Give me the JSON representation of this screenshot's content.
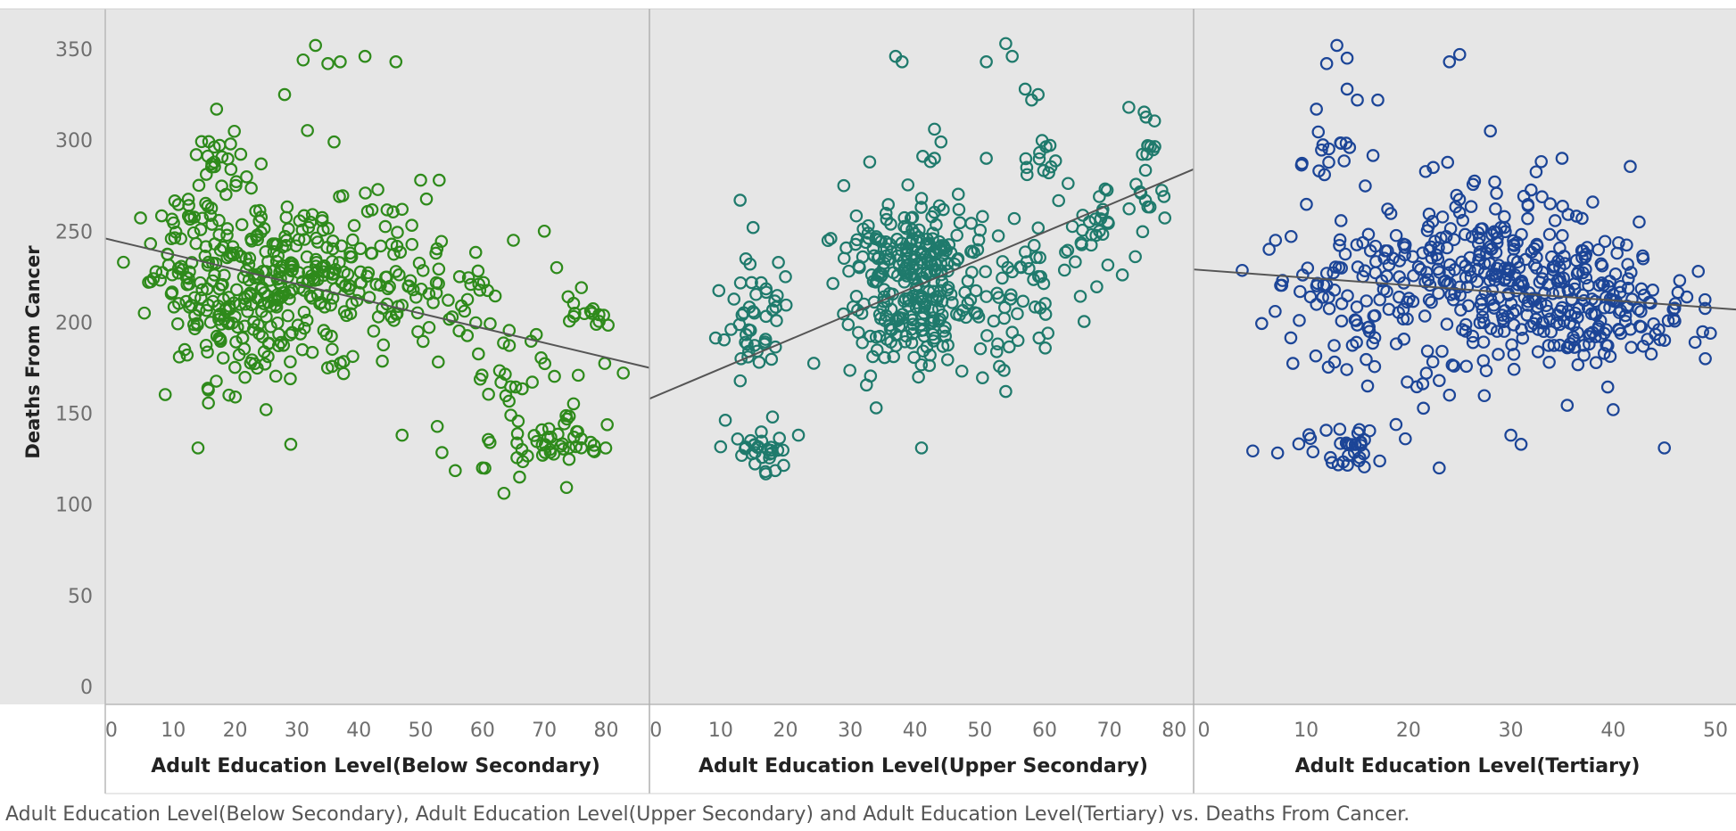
{
  "chart_data": {
    "type": "scatter",
    "y_axis": {
      "label": "Deaths From Cancer",
      "range": [
        0,
        360
      ],
      "ticks": [
        0,
        50,
        100,
        150,
        200,
        250,
        300,
        350
      ],
      "tick_labels": [
        "0",
        "50",
        "100",
        "150",
        "200",
        "250",
        "300",
        "350"
      ]
    },
    "caption": "Adult Education Level(Below Secondary), Adult Education Level(Upper Secondary) and Adult Education Level(Tertiary) vs. Deaths From Cancer.",
    "panels": [
      {
        "xlabel": "Adult Education Level(Below Secondary)",
        "x_range": [
          -1,
          87
        ],
        "x_ticks": [
          0,
          10,
          20,
          30,
          40,
          50,
          60,
          70,
          80
        ],
        "x_tick_labels": [
          "0",
          "10",
          "20",
          "30",
          "40",
          "50",
          "60",
          "70",
          "80"
        ],
        "color": "#2e8a1b",
        "trend": [
          [
            -1,
            246
          ],
          [
            87,
            175
          ]
        ],
        "clusters": [
          {
            "cx": 22,
            "cy": 215,
            "sx": 7,
            "sy": 24,
            "n": 230,
            "seed": 11
          },
          {
            "cx": 38,
            "cy": 230,
            "sx": 8,
            "sy": 22,
            "n": 130,
            "seed": 12
          },
          {
            "cx": 12,
            "cy": 240,
            "sx": 3,
            "sy": 25,
            "n": 45,
            "seed": 13
          },
          {
            "cx": 55,
            "cy": 210,
            "sx": 6,
            "sy": 14,
            "n": 35,
            "seed": 14
          },
          {
            "cx": 67,
            "cy": 170,
            "sx": 6,
            "sy": 30,
            "n": 50,
            "seed": 15
          },
          {
            "cx": 74,
            "cy": 134,
            "sx": 4,
            "sy": 4,
            "n": 30,
            "seed": 16
          },
          {
            "cx": 18,
            "cy": 290,
            "sx": 3,
            "sy": 10,
            "n": 25,
            "seed": 17
          },
          {
            "cx": 78,
            "cy": 205,
            "sx": 2,
            "sy": 3,
            "n": 12,
            "seed": 18
          }
        ],
        "outliers": [
          [
            14,
            131
          ],
          [
            29,
            133
          ],
          [
            47,
            138
          ],
          [
            25,
            152
          ],
          [
            19,
            160
          ],
          [
            35,
            342
          ],
          [
            41,
            346
          ],
          [
            33,
            352
          ],
          [
            46,
            343
          ],
          [
            28,
            325
          ],
          [
            17,
            317
          ],
          [
            31,
            344
          ],
          [
            37,
            343
          ],
          [
            36,
            299
          ],
          [
            47,
            262
          ],
          [
            50,
            278
          ],
          [
            63,
            167
          ],
          [
            60,
            120
          ],
          [
            66,
            115
          ],
          [
            70,
            250
          ],
          [
            72,
            230
          ],
          [
            76,
            219
          ],
          [
            65,
            245
          ],
          [
            53,
            278
          ]
        ]
      },
      {
        "xlabel": "Adult Education Level(Upper Secondary)",
        "x_range": [
          -1,
          83
        ],
        "x_ticks": [
          0,
          10,
          20,
          30,
          40,
          50,
          60,
          70,
          80
        ],
        "x_tick_labels": [
          "0",
          "10",
          "20",
          "30",
          "40",
          "50",
          "60",
          "70",
          "80"
        ],
        "color": "#1f7a6c",
        "trend": [
          [
            -1,
            158
          ],
          [
            83,
            284
          ]
        ],
        "clusters": [
          {
            "cx": 40,
            "cy": 222,
            "sx": 5,
            "sy": 22,
            "n": 280,
            "seed": 21
          },
          {
            "cx": 15,
            "cy": 200,
            "sx": 3,
            "sy": 14,
            "n": 45,
            "seed": 22
          },
          {
            "cx": 16,
            "cy": 130,
            "sx": 2,
            "sy": 6,
            "n": 30,
            "seed": 23
          },
          {
            "cx": 55,
            "cy": 215,
            "sx": 6,
            "sy": 25,
            "n": 60,
            "seed": 24
          },
          {
            "cx": 67,
            "cy": 255,
            "sx": 3,
            "sy": 12,
            "n": 25,
            "seed": 25
          },
          {
            "cx": 76,
            "cy": 285,
            "sx": 1.2,
            "sy": 20,
            "n": 22,
            "seed": 26
          },
          {
            "cx": 60,
            "cy": 290,
            "sx": 1.5,
            "sy": 6,
            "n": 12,
            "seed": 27
          }
        ],
        "outliers": [
          [
            13,
            267
          ],
          [
            15,
            252
          ],
          [
            20,
            225
          ],
          [
            22,
            138
          ],
          [
            29,
            275
          ],
          [
            27,
            246
          ],
          [
            33,
            288
          ],
          [
            37,
            346
          ],
          [
            38,
            343
          ],
          [
            51,
            343
          ],
          [
            54,
            353
          ],
          [
            55,
            346
          ],
          [
            57,
            328
          ],
          [
            58,
            322
          ],
          [
            59,
            325
          ],
          [
            41,
            131
          ],
          [
            43,
            306
          ],
          [
            44,
            299
          ],
          [
            41,
            268
          ],
          [
            34,
            153
          ],
          [
            54,
            162
          ],
          [
            51,
            290
          ],
          [
            73,
            318
          ],
          [
            74,
            236
          ],
          [
            72,
            226
          ],
          [
            18,
            148
          ],
          [
            43,
            290
          ]
        ]
      },
      {
        "xlabel": "Adult Education Level(Tertiary)",
        "x_range": [
          -1,
          52
        ],
        "x_ticks": [
          0,
          10,
          20,
          30,
          40,
          50
        ],
        "x_tick_labels": [
          "0",
          "10",
          "20",
          "30",
          "40",
          "50"
        ],
        "color": "#1c4597",
        "trend": [
          [
            -1,
            229
          ],
          [
            52,
            207
          ]
        ],
        "clusters": [
          {
            "cx": 28,
            "cy": 228,
            "sx": 6,
            "sy": 25,
            "n": 260,
            "seed": 31
          },
          {
            "cx": 37,
            "cy": 210,
            "sx": 5,
            "sy": 18,
            "n": 120,
            "seed": 32
          },
          {
            "cx": 14,
            "cy": 210,
            "sx": 4,
            "sy": 22,
            "n": 80,
            "seed": 33
          },
          {
            "cx": 14,
            "cy": 132,
            "sx": 3,
            "sy": 7,
            "n": 35,
            "seed": 34
          },
          {
            "cx": 12,
            "cy": 295,
            "sx": 1.5,
            "sy": 8,
            "n": 15,
            "seed": 35
          },
          {
            "cx": 44,
            "cy": 205,
            "sx": 3,
            "sy": 12,
            "n": 35,
            "seed": 36
          }
        ],
        "outliers": [
          [
            13,
            352
          ],
          [
            14,
            345
          ],
          [
            12,
            342
          ],
          [
            24,
            343
          ],
          [
            25,
            347
          ],
          [
            14,
            328
          ],
          [
            15,
            322
          ],
          [
            17,
            322
          ],
          [
            11,
            317
          ],
          [
            28,
            305
          ],
          [
            30,
            138
          ],
          [
            31,
            133
          ],
          [
            23,
            120
          ],
          [
            40,
            152
          ],
          [
            45,
            131
          ],
          [
            38,
            266
          ],
          [
            48,
            189
          ],
          [
            16,
            165
          ],
          [
            7,
            245
          ],
          [
            23,
            168
          ],
          [
            24,
            160
          ],
          [
            35,
            290
          ],
          [
            49,
            180
          ]
        ]
      }
    ]
  }
}
